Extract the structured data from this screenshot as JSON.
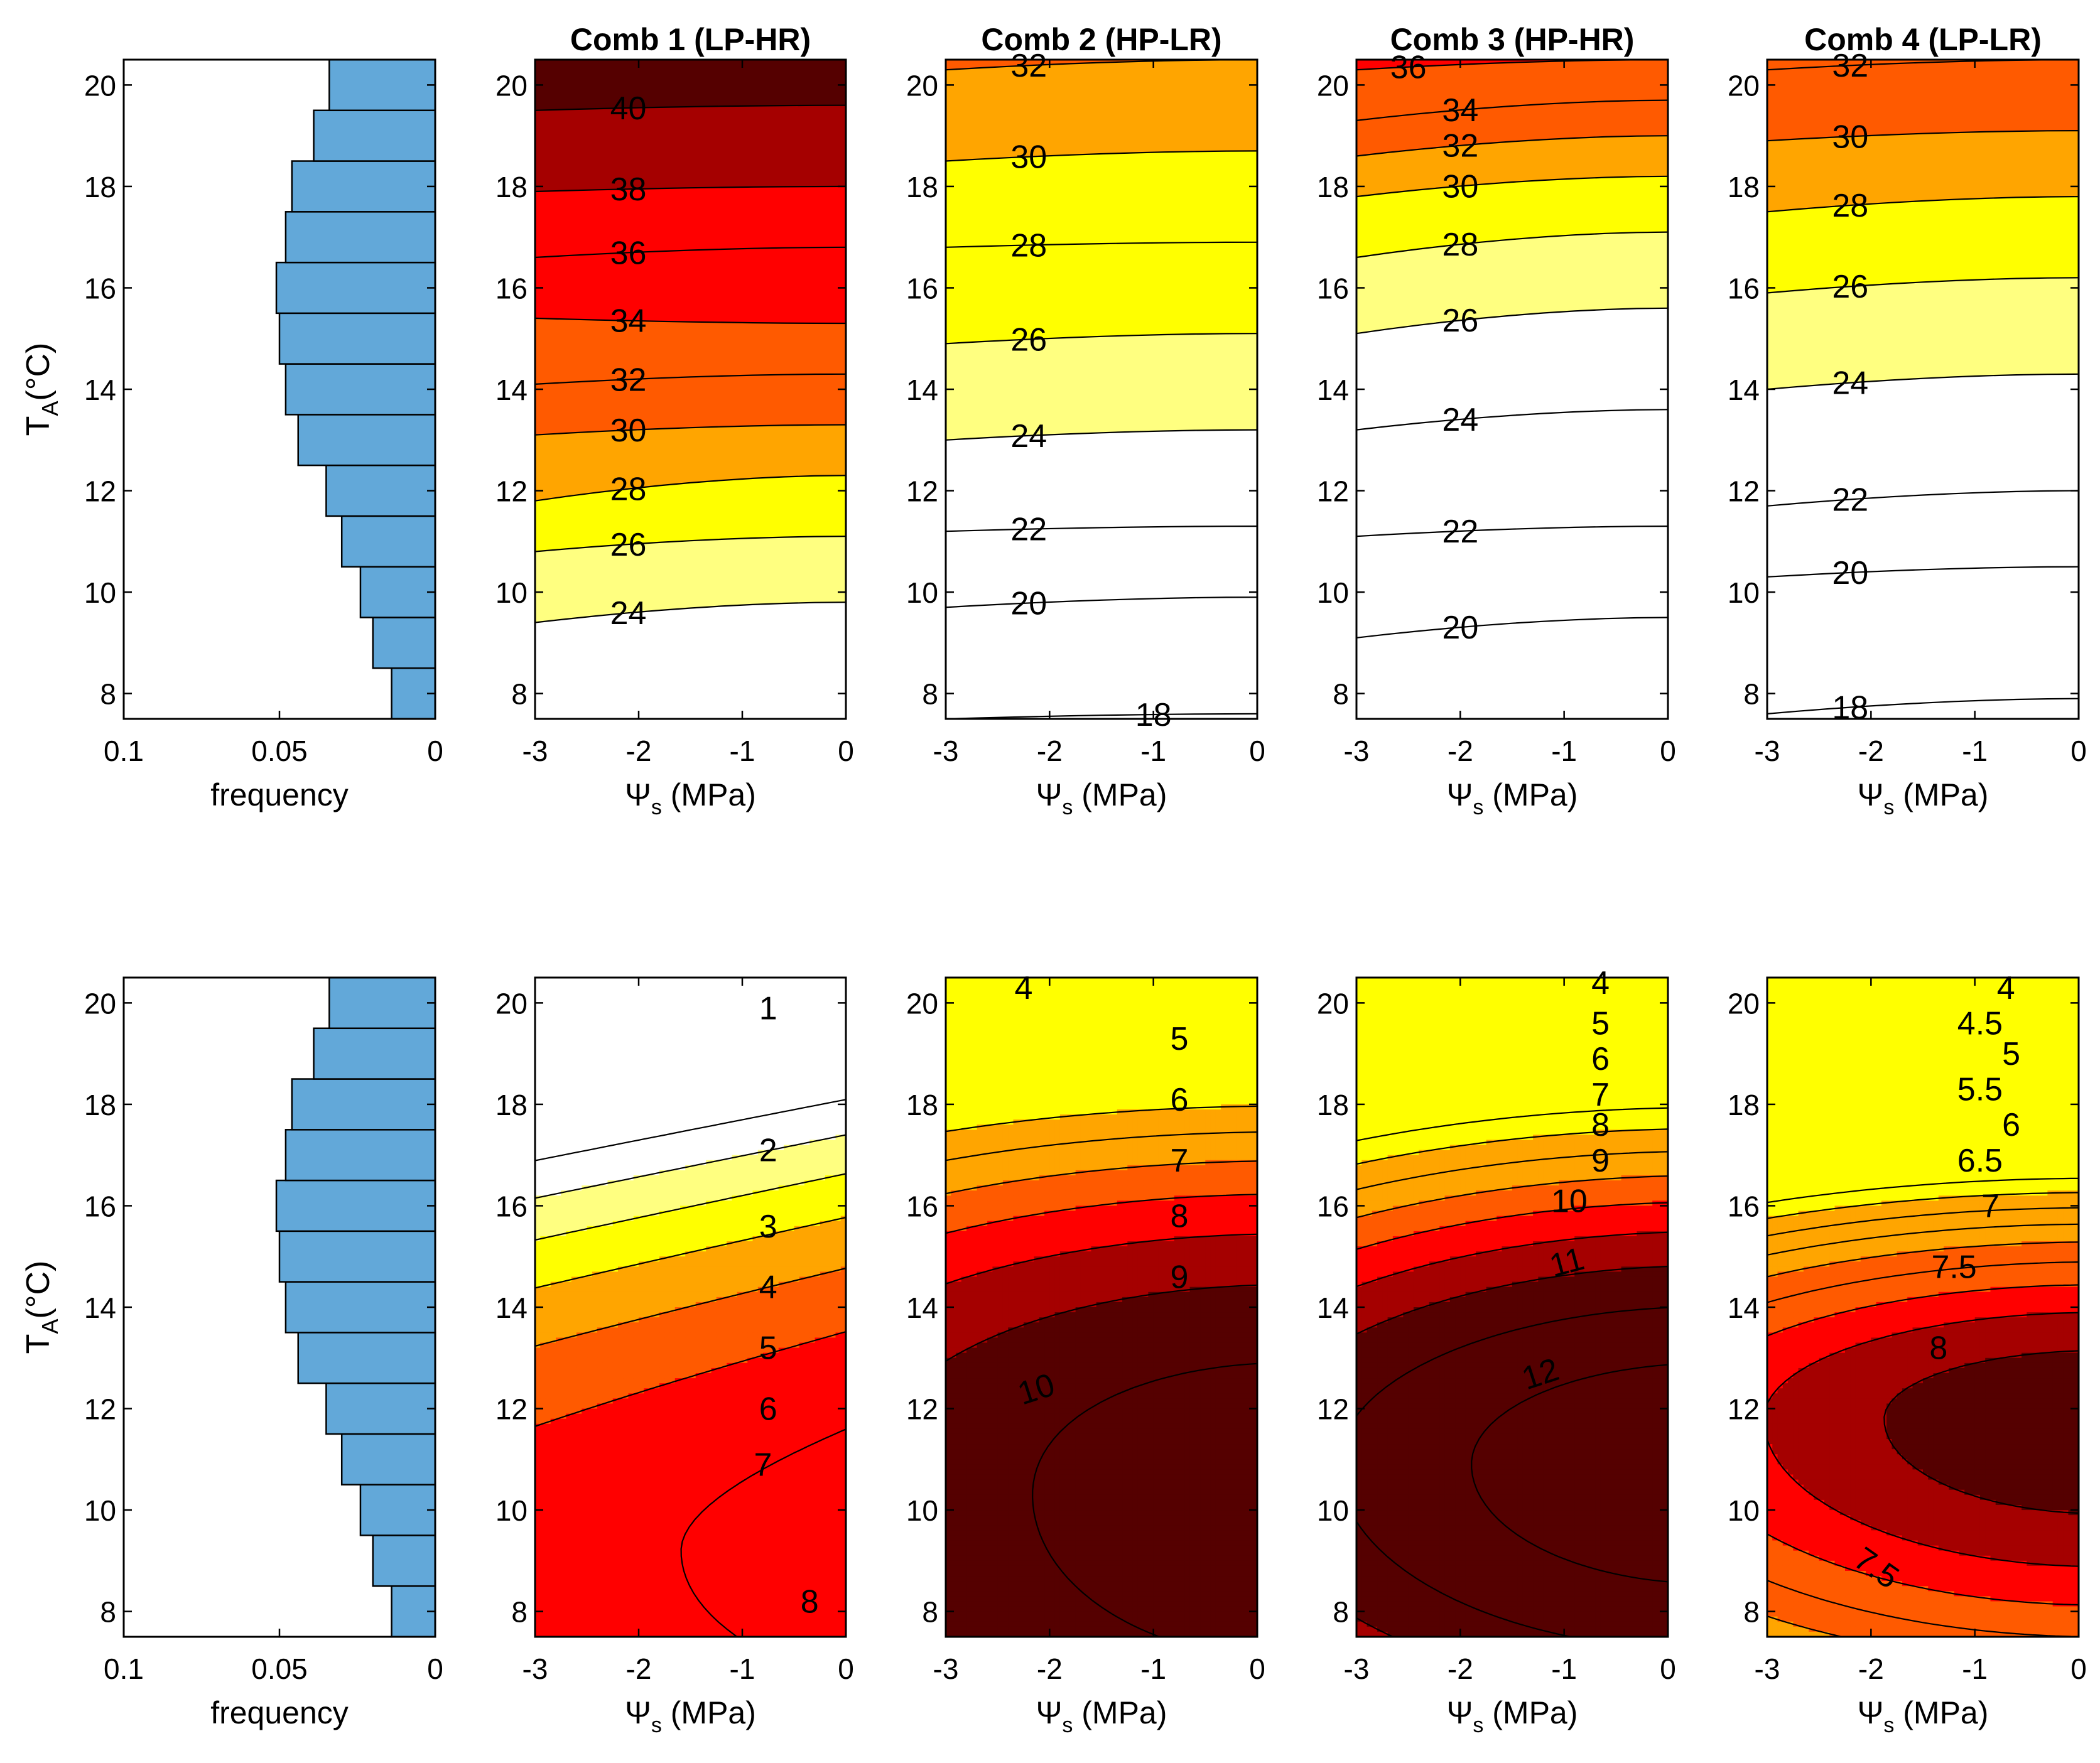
{
  "figure": {
    "panel_titles": [
      "Comb 1 (LP-HR)",
      "Comb 2 (HP-LR)",
      "Comb 3 (HP-HR)",
      "Comb 4 (LP-LR)"
    ],
    "xlabel_contour": "Ψ",
    "xlabel_sub": "s",
    "xlabel_tail": " (MPa)",
    "ylabel_main": "T",
    "ylabel_sub": "A",
    "ylabel_tail": "(°C)",
    "hist_xlabel": "frequency"
  },
  "chart_data": [
    {
      "type": "bar",
      "orientation": "horizontal",
      "row": 1,
      "xlabel": "frequency",
      "ylabel": "T_A(°C)",
      "xlim": [
        0.1,
        0
      ],
      "x_reversed": true,
      "ylim": [
        7.5,
        20.5
      ],
      "xticks": [
        "0.1",
        "0.05",
        "0"
      ],
      "yticks": [
        "8",
        "10",
        "12",
        "14",
        "16",
        "18",
        "20"
      ],
      "bin_edges": [
        7.5,
        8.5,
        9.5,
        10.5,
        11.5,
        12.5,
        13.5,
        14.5,
        15.5,
        16.5,
        17.5,
        18.5,
        19.5,
        20.5
      ],
      "values": [
        0.014,
        0.02,
        0.024,
        0.03,
        0.035,
        0.044,
        0.048,
        0.05,
        0.051,
        0.048,
        0.046,
        0.039,
        0.034,
        0.031
      ],
      "values_note": "",
      "bar_color": "#62a8d9"
    },
    {
      "type": "contour",
      "row": 1,
      "title": "Comb 1 (LP-HR)",
      "xlim": [
        -3,
        0
      ],
      "ylim": [
        7.5,
        20.5
      ],
      "xticks": [
        "-3",
        "-2",
        "-1",
        "0"
      ],
      "yticks": [
        "8",
        "10",
        "12",
        "14",
        "16",
        "18",
        "20"
      ],
      "levels": [
        24,
        26,
        28,
        30,
        32,
        34,
        36,
        38,
        40
      ],
      "level_labels": [
        "24",
        "26",
        "28",
        "30",
        "32",
        "34",
        "36",
        "38",
        "40"
      ],
      "contour_y_at_x_minus3": [
        9.4,
        10.8,
        11.8,
        13.1,
        14.1,
        15.4,
        16.6,
        17.9,
        19.5
      ],
      "contour_y_at_x_0": [
        9.8,
        11.1,
        12.3,
        13.3,
        14.3,
        15.3,
        16.8,
        18.0,
        19.6
      ]
    },
    {
      "type": "contour",
      "row": 1,
      "title": "Comb 2 (HP-LR)",
      "xlim": [
        -3,
        0
      ],
      "ylim": [
        7.5,
        20.5
      ],
      "xticks": [
        "-3",
        "-2",
        "-1",
        "0"
      ],
      "yticks": [
        "8",
        "10",
        "12",
        "14",
        "16",
        "18",
        "20"
      ],
      "levels": [
        18,
        20,
        22,
        24,
        26,
        28,
        30,
        32
      ],
      "level_labels": [
        "18",
        "20",
        "22",
        "24",
        "26",
        "28",
        "30",
        "32"
      ],
      "contour_y_at_x_minus3": [
        7.5,
        9.7,
        11.2,
        13.0,
        14.9,
        16.8,
        18.5,
        20.3
      ],
      "contour_y_at_x_0": [
        7.6,
        9.9,
        11.3,
        13.2,
        15.1,
        16.9,
        18.7,
        20.5
      ]
    },
    {
      "type": "contour",
      "row": 1,
      "title": "Comb 3 (HP-HR)",
      "xlim": [
        -3,
        0
      ],
      "ylim": [
        7.5,
        20.5
      ],
      "xticks": [
        "-3",
        "-2",
        "-1",
        "0"
      ],
      "yticks": [
        "8",
        "10",
        "12",
        "14",
        "16",
        "18",
        "20"
      ],
      "levels": [
        20,
        22,
        24,
        26,
        28,
        30,
        32,
        34,
        36
      ],
      "level_labels": [
        "20",
        "22",
        "24",
        "26",
        "28",
        "30",
        "32",
        "34",
        "36"
      ],
      "contour_y_at_x_minus3": [
        9.1,
        11.1,
        13.2,
        15.1,
        16.6,
        17.8,
        18.6,
        19.3,
        20.3
      ],
      "contour_y_at_x_0": [
        9.5,
        11.3,
        13.6,
        15.6,
        17.1,
        18.2,
        19.0,
        19.7,
        20.5
      ]
    },
    {
      "type": "contour",
      "row": 1,
      "title": "Comb 4 (LP-LR)",
      "xlim": [
        -3,
        0
      ],
      "ylim": [
        7.5,
        20.5
      ],
      "xticks": [
        "-3",
        "-2",
        "-1",
        "0"
      ],
      "yticks": [
        "8",
        "10",
        "12",
        "14",
        "16",
        "18",
        "20"
      ],
      "levels": [
        18,
        20,
        22,
        24,
        26,
        28,
        30,
        32
      ],
      "level_labels": [
        "18",
        "20",
        "22",
        "24",
        "26",
        "28",
        "30",
        "32"
      ],
      "contour_y_at_x_minus3": [
        7.6,
        10.3,
        11.7,
        14.0,
        15.9,
        17.5,
        18.9,
        20.3
      ],
      "contour_y_at_x_0": [
        7.9,
        10.5,
        12.0,
        14.3,
        16.2,
        17.8,
        19.1,
        20.5
      ]
    },
    {
      "type": "bar",
      "orientation": "horizontal",
      "row": 2,
      "xlabel": "frequency",
      "ylabel": "T_A(°C)",
      "xlim": [
        0.1,
        0
      ],
      "x_reversed": true,
      "ylim": [
        7.5,
        20.5
      ],
      "xticks": [
        "0.1",
        "0.05",
        "0"
      ],
      "yticks": [
        "8",
        "10",
        "12",
        "14",
        "16",
        "18",
        "20"
      ],
      "bin_edges": [
        7.5,
        8.5,
        9.5,
        10.5,
        11.5,
        12.5,
        13.5,
        14.5,
        15.5,
        16.5,
        17.5,
        18.5,
        19.5,
        20.5
      ],
      "values": [
        0.014,
        0.02,
        0.024,
        0.03,
        0.035,
        0.044,
        0.048,
        0.05,
        0.051,
        0.048,
        0.046,
        0.039,
        0.034,
        0.031
      ],
      "bar_color": "#62a8d9"
    },
    {
      "type": "contour",
      "row": 2,
      "xlim": [
        -3,
        0
      ],
      "ylim": [
        7.5,
        20.5
      ],
      "xticks": [
        "-3",
        "-2",
        "-1",
        "0"
      ],
      "yticks": [
        "8",
        "10",
        "12",
        "14",
        "16",
        "18",
        "20"
      ],
      "levels": [
        1,
        2,
        3,
        4,
        5,
        6,
        7,
        8
      ],
      "level_labels": [
        "1",
        "2",
        "3",
        "4",
        "5",
        "6",
        "7",
        "8"
      ]
    },
    {
      "type": "contour",
      "row": 2,
      "xlim": [
        -3,
        0
      ],
      "ylim": [
        7.5,
        20.5
      ],
      "xticks": [
        "-3",
        "-2",
        "-1",
        "0"
      ],
      "yticks": [
        "8",
        "10",
        "12",
        "14",
        "16",
        "18",
        "20"
      ],
      "levels": [
        4,
        5,
        6,
        7,
        8,
        9,
        10
      ],
      "level_labels": [
        "4",
        "5",
        "6",
        "7",
        "8",
        "9",
        "10"
      ]
    },
    {
      "type": "contour",
      "row": 2,
      "xlim": [
        -3,
        0
      ],
      "ylim": [
        7.5,
        20.5
      ],
      "xticks": [
        "-3",
        "-2",
        "-1",
        "0"
      ],
      "yticks": [
        "8",
        "10",
        "12",
        "14",
        "16",
        "18",
        "20"
      ],
      "levels": [
        4,
        5,
        6,
        7,
        8,
        9,
        10,
        11,
        12
      ],
      "level_labels": [
        "4",
        "5",
        "6",
        "7",
        "8",
        "9",
        "10",
        "11",
        "12"
      ]
    },
    {
      "type": "contour",
      "row": 2,
      "xlim": [
        -3,
        0
      ],
      "ylim": [
        7.5,
        20.5
      ],
      "xticks": [
        "-3",
        "-2",
        "-1",
        "0"
      ],
      "yticks": [
        "8",
        "10",
        "12",
        "14",
        "16",
        "18",
        "20"
      ],
      "levels": [
        4,
        4.5,
        5,
        5.5,
        6,
        6.5,
        7,
        7.5,
        8
      ],
      "level_labels": [
        "4",
        "4.5",
        "5",
        "5.5",
        "6",
        "6.5",
        "7",
        "7.5",
        "8",
        "7.5"
      ]
    }
  ],
  "colormap": [
    "#ffffff",
    "#ffff80",
    "#ffff00",
    "#ffa500",
    "#ff5a00",
    "#ff0000",
    "#a50000",
    "#550000"
  ]
}
